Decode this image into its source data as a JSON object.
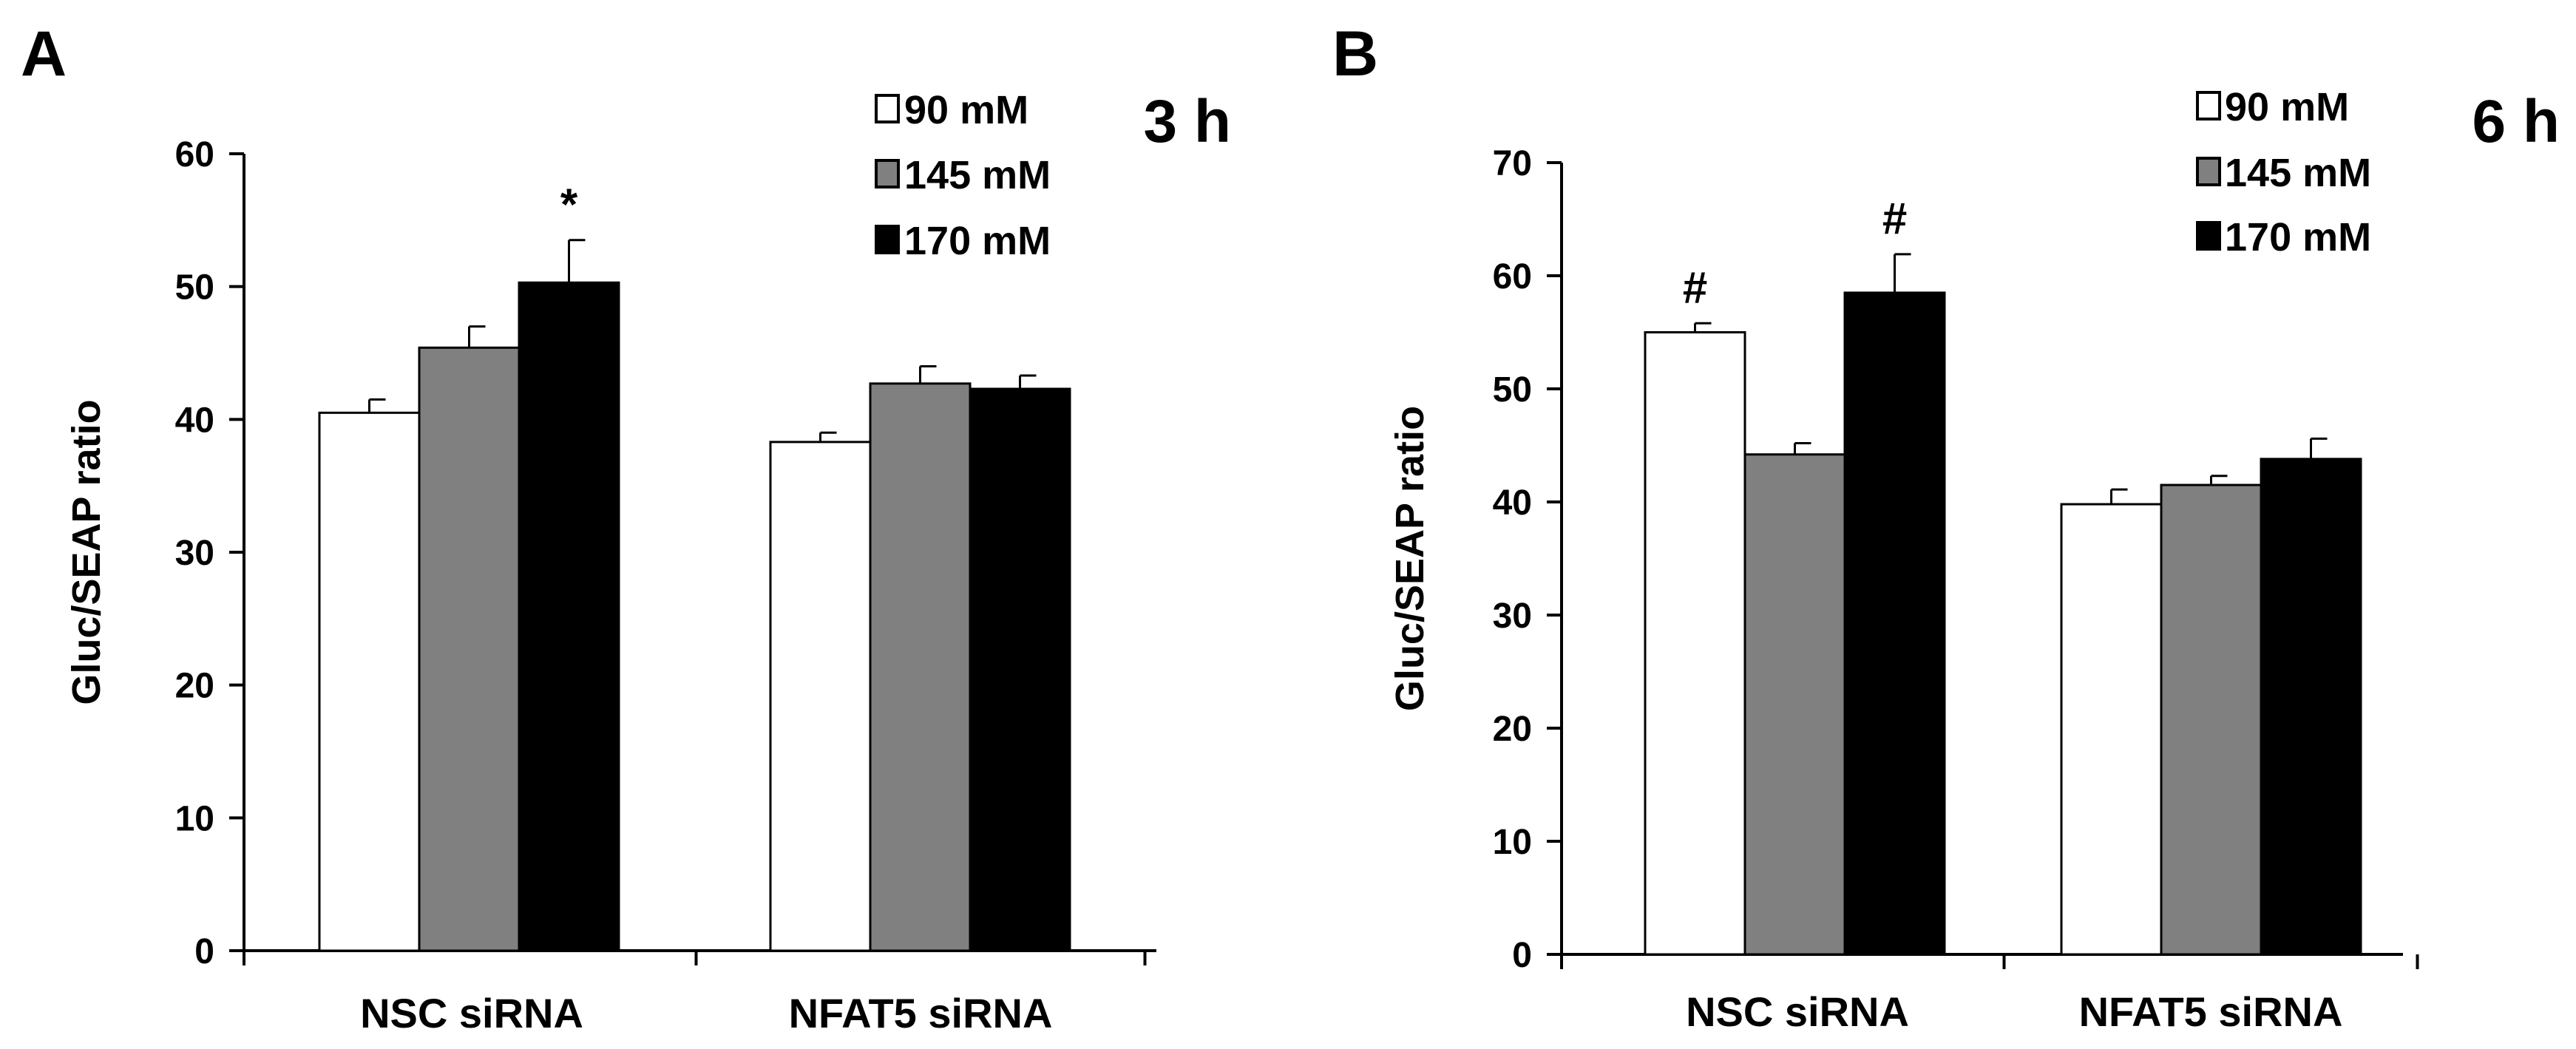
{
  "chart_data": [
    {
      "type": "bar",
      "panel": "A",
      "title": "3 h",
      "categories": [
        "NSC siRNA",
        "NFAT5 siRNA"
      ],
      "ylabel": "Gluc/SEAP ratio",
      "xlabel": "",
      "ylim": [
        0,
        60
      ],
      "yticks": [
        "0",
        "10",
        "20",
        "30",
        "40",
        "50",
        "60"
      ],
      "grid": false,
      "legend_position": "top-right",
      "series": [
        {
          "name": "90 mM",
          "color": "#ffffff",
          "values": [
            40.5,
            38.3
          ],
          "errors": [
            1.0,
            0.7
          ]
        },
        {
          "name": "145 mM",
          "color": "#808080",
          "values": [
            45.4,
            42.7
          ],
          "errors": [
            1.6,
            1.3
          ]
        },
        {
          "name": "170 mM",
          "color": "#000000",
          "values": [
            50.3,
            42.3
          ],
          "errors": [
            3.2,
            1.0
          ]
        }
      ],
      "annotations": [
        {
          "text": "*",
          "category": 0,
          "series": 2
        }
      ]
    },
    {
      "type": "bar",
      "panel": "B",
      "title": "6 h",
      "categories": [
        "NSC siRNA",
        "NFAT5 siRNA"
      ],
      "ylabel": "Gluc/SEAP ratio",
      "xlabel": "",
      "ylim": [
        0,
        70
      ],
      "yticks": [
        "0",
        "10",
        "20",
        "30",
        "40",
        "50",
        "60",
        "70"
      ],
      "grid": false,
      "legend_position": "top-right",
      "series": [
        {
          "name": "90 mM",
          "color": "#ffffff",
          "values": [
            55.0,
            39.8
          ],
          "errors": [
            0.8,
            1.3
          ]
        },
        {
          "name": "145 mM",
          "color": "#808080",
          "values": [
            44.2,
            41.5
          ],
          "errors": [
            1.0,
            0.8
          ]
        },
        {
          "name": "170 mM",
          "color": "#000000",
          "values": [
            58.5,
            43.8
          ],
          "errors": [
            3.4,
            1.8
          ]
        }
      ],
      "annotations": [
        {
          "text": "#",
          "category": 0,
          "series": 0
        },
        {
          "text": "#",
          "category": 0,
          "series": 2
        }
      ]
    }
  ]
}
